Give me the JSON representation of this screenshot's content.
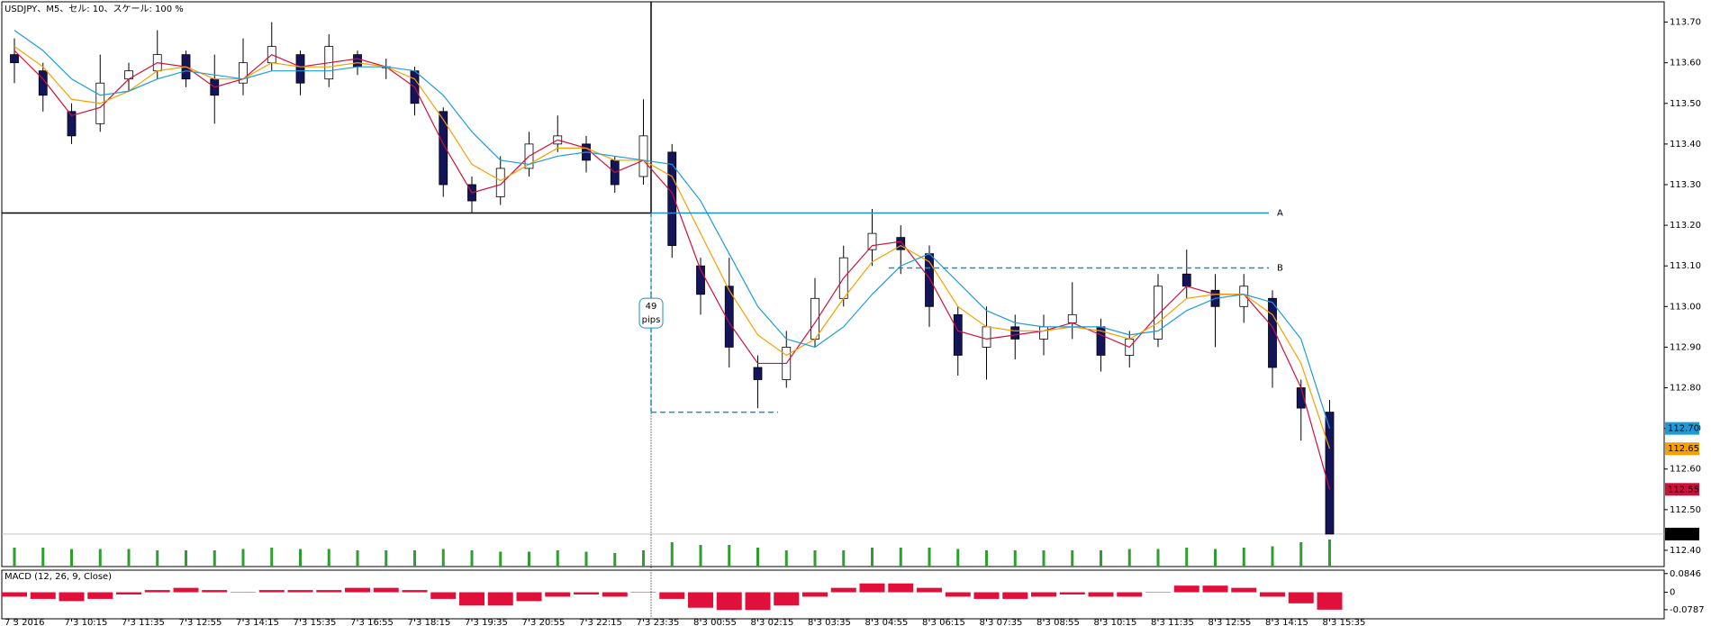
{
  "chart_data": {
    "type": "candlestick",
    "title": "USDJPY、M5、セル: 10、スケール: 100 %",
    "categories": [
      "7 3 2016",
      null,
      "7 3 10:15",
      null,
      "7 3 11:35",
      null,
      "7 3 12:55",
      null,
      "7 3 14:15",
      null,
      "7 3 15:35",
      null,
      "7 3 16:55",
      null,
      "7 3 18:15",
      null,
      "7 3 19:35",
      null,
      "7 3 20:55",
      null,
      "7 3 22:15",
      null,
      "7 3 23:35",
      null,
      "8 3 00:55",
      null,
      "8 3 02:15",
      null,
      "8 3 03:35",
      null,
      "8 3 04:55",
      null,
      "8 3 06:15",
      null,
      "8 3 07:35",
      null,
      "8 3 08:55",
      null,
      "8 3 10:15",
      null,
      "8 3 11:35",
      null,
      "8 3 12:55",
      null,
      "8 3 14:15",
      null,
      "8 3 15:35"
    ],
    "open": [
      113.62,
      113.58,
      113.48,
      113.45,
      113.56,
      113.58,
      113.62,
      113.56,
      113.55,
      113.6,
      113.62,
      113.56,
      113.62,
      113.59,
      113.58,
      113.48,
      113.3,
      113.27,
      113.34,
      113.4,
      113.4,
      113.36,
      113.32,
      113.38,
      113.1,
      113.05,
      112.85,
      112.82,
      112.92,
      113.02,
      113.14,
      113.17,
      113.13,
      112.98,
      112.9,
      112.95,
      112.92,
      112.96,
      112.95,
      112.88,
      112.92,
      113.08,
      113.04,
      113.0,
      113.02,
      112.8,
      112.74
    ],
    "high": [
      113.66,
      113.6,
      113.5,
      113.62,
      113.6,
      113.68,
      113.63,
      113.62,
      113.66,
      113.7,
      113.63,
      113.67,
      113.63,
      113.61,
      113.59,
      113.49,
      113.32,
      113.37,
      113.43,
      113.47,
      113.42,
      113.37,
      113.51,
      113.4,
      113.12,
      113.12,
      112.88,
      112.94,
      113.07,
      113.15,
      113.24,
      113.2,
      113.15,
      113.0,
      113.0,
      112.98,
      112.98,
      113.06,
      112.97,
      112.94,
      113.08,
      113.14,
      113.08,
      113.08,
      113.04,
      112.82,
      112.77
    ],
    "low": [
      113.55,
      113.48,
      113.4,
      113.43,
      113.53,
      113.56,
      113.54,
      113.45,
      113.52,
      113.58,
      113.52,
      113.54,
      113.57,
      113.56,
      113.47,
      113.27,
      113.23,
      113.25,
      113.32,
      113.38,
      113.33,
      113.28,
      113.3,
      113.12,
      112.98,
      112.85,
      112.75,
      112.8,
      112.9,
      113.0,
      113.1,
      113.08,
      112.95,
      112.83,
      112.82,
      112.87,
      112.88,
      112.92,
      112.84,
      112.85,
      112.9,
      113.02,
      112.9,
      112.96,
      112.8,
      112.67,
      112.44
    ],
    "close": [
      113.6,
      113.52,
      113.42,
      113.55,
      113.58,
      113.62,
      113.56,
      113.52,
      113.6,
      113.64,
      113.55,
      113.64,
      113.59,
      113.59,
      113.5,
      113.3,
      113.26,
      113.34,
      113.4,
      113.42,
      113.36,
      113.3,
      113.42,
      113.15,
      113.03,
      112.9,
      112.82,
      112.9,
      113.02,
      113.12,
      113.18,
      113.14,
      113.0,
      112.88,
      112.95,
      112.92,
      112.95,
      112.98,
      112.88,
      112.92,
      113.05,
      113.05,
      113.0,
      113.05,
      112.85,
      112.75,
      112.44
    ],
    "up_color": "#ffffff",
    "down_color": "#14145a",
    "series": [
      {
        "color": "#d0103a",
        "values": [
          113.63,
          113.56,
          113.47,
          113.49,
          113.56,
          113.6,
          113.59,
          113.54,
          113.56,
          113.62,
          113.59,
          113.6,
          113.61,
          113.59,
          113.54,
          113.4,
          113.28,
          113.3,
          113.37,
          113.41,
          113.39,
          113.33,
          113.36,
          113.28,
          113.09,
          112.96,
          112.86,
          112.86,
          112.96,
          113.07,
          113.15,
          113.16,
          113.07,
          112.94,
          112.92,
          112.93,
          112.94,
          112.96,
          112.93,
          112.9,
          112.98,
          113.05,
          113.03,
          113.03,
          112.95,
          112.8,
          112.55
        ]
      },
      {
        "color": "#f5a000",
        "values": [
          113.64,
          113.59,
          113.51,
          113.5,
          113.53,
          113.58,
          113.59,
          113.56,
          113.56,
          113.6,
          113.59,
          113.59,
          113.6,
          113.59,
          113.56,
          113.46,
          113.35,
          113.31,
          113.35,
          113.39,
          113.39,
          113.36,
          113.36,
          113.32,
          113.18,
          113.04,
          112.93,
          112.88,
          112.92,
          113.02,
          113.11,
          113.15,
          113.11,
          113.0,
          112.95,
          112.94,
          112.94,
          112.95,
          112.94,
          112.92,
          112.96,
          113.02,
          113.03,
          113.03,
          112.98,
          112.86,
          112.65
        ]
      },
      {
        "color": "#1e9bd7",
        "values": [
          113.68,
          113.63,
          113.56,
          113.52,
          113.53,
          113.56,
          113.58,
          113.57,
          113.56,
          113.58,
          113.58,
          113.58,
          113.59,
          113.59,
          113.58,
          113.52,
          113.43,
          113.36,
          113.35,
          113.37,
          113.38,
          113.37,
          113.36,
          113.35,
          113.26,
          113.13,
          113.0,
          112.92,
          112.9,
          112.95,
          113.03,
          113.1,
          113.13,
          113.06,
          112.99,
          112.96,
          112.95,
          112.95,
          112.95,
          112.93,
          112.94,
          112.99,
          113.02,
          113.03,
          113.01,
          112.92,
          112.7
        ]
      }
    ],
    "price_tags": [
      {
        "value": 112.7,
        "label": "112.70",
        "color": "#1e9bd7"
      },
      {
        "value": 112.65,
        "label": "112.65",
        "color": "#f5a000"
      },
      {
        "value": 112.55,
        "label": "112.55",
        "color": "#d0103a"
      },
      {
        "value": 112.44,
        "label": "112.44",
        "color": "#000000"
      }
    ],
    "ylim": [
      112.36,
      113.75
    ],
    "yticks": [
      {
        "value": 113.7,
        "label": "113.70"
      },
      {
        "value": 113.6,
        "label": "113.60"
      },
      {
        "value": 113.5,
        "label": "113.50"
      },
      {
        "value": 113.4,
        "label": "113.40"
      },
      {
        "value": 113.3,
        "label": "113.30"
      },
      {
        "value": 113.2,
        "label": "113.20"
      },
      {
        "value": 113.1,
        "label": "113.10"
      },
      {
        "value": 113.0,
        "label": "113.00"
      },
      {
        "value": 112.9,
        "label": "112.90"
      },
      {
        "value": 112.8,
        "label": "112.80"
      },
      {
        "value": 112.7,
        "label": "112.70"
      },
      {
        "value": 112.6,
        "label": "112.60"
      },
      {
        "value": 112.5,
        "label": "112.50"
      },
      {
        "value": 112.4,
        "label": "112.40"
      }
    ],
    "levels": [
      {
        "label": "A",
        "value": 113.23
      },
      {
        "label": "B",
        "value": 113.095
      }
    ],
    "measure": {
      "value": 49,
      "unit": "pips",
      "from": 112.74,
      "to": 113.23
    },
    "volume": {
      "color": "#2e9e2e",
      "ylim": [
        0,
        40
      ],
      "values": [
        14,
        14,
        13,
        13,
        13,
        12,
        12,
        12,
        13,
        14,
        13,
        13,
        12,
        12,
        12,
        13,
        12,
        11,
        11,
        12,
        11,
        10,
        12,
        18,
        16,
        16,
        14,
        12,
        12,
        12,
        14,
        14,
        14,
        13,
        12,
        12,
        12,
        12,
        12,
        13,
        13,
        14,
        13,
        14,
        15,
        18,
        20
      ]
    },
    "macd": {
      "label": "MACD (12, 26, 9, Close)",
      "color": "#e0103a",
      "ylim": [
        -0.12,
        0.1
      ],
      "yticks": [
        0.0846,
        0,
        -0.0787
      ],
      "values": [
        -0.02,
        -0.03,
        -0.04,
        -0.03,
        -0.01,
        0.01,
        0.02,
        0.01,
        0.0,
        0.01,
        0.01,
        0.01,
        0.02,
        0.02,
        0.01,
        -0.03,
        -0.06,
        -0.06,
        -0.04,
        -0.02,
        -0.01,
        -0.02,
        0.0,
        -0.03,
        -0.07,
        -0.08,
        -0.08,
        -0.06,
        -0.02,
        0.02,
        0.04,
        0.04,
        0.02,
        -0.02,
        -0.03,
        -0.03,
        -0.02,
        -0.01,
        -0.02,
        -0.02,
        0.0,
        0.03,
        0.03,
        0.02,
        -0.02,
        -0.05,
        -0.0787
      ]
    }
  }
}
